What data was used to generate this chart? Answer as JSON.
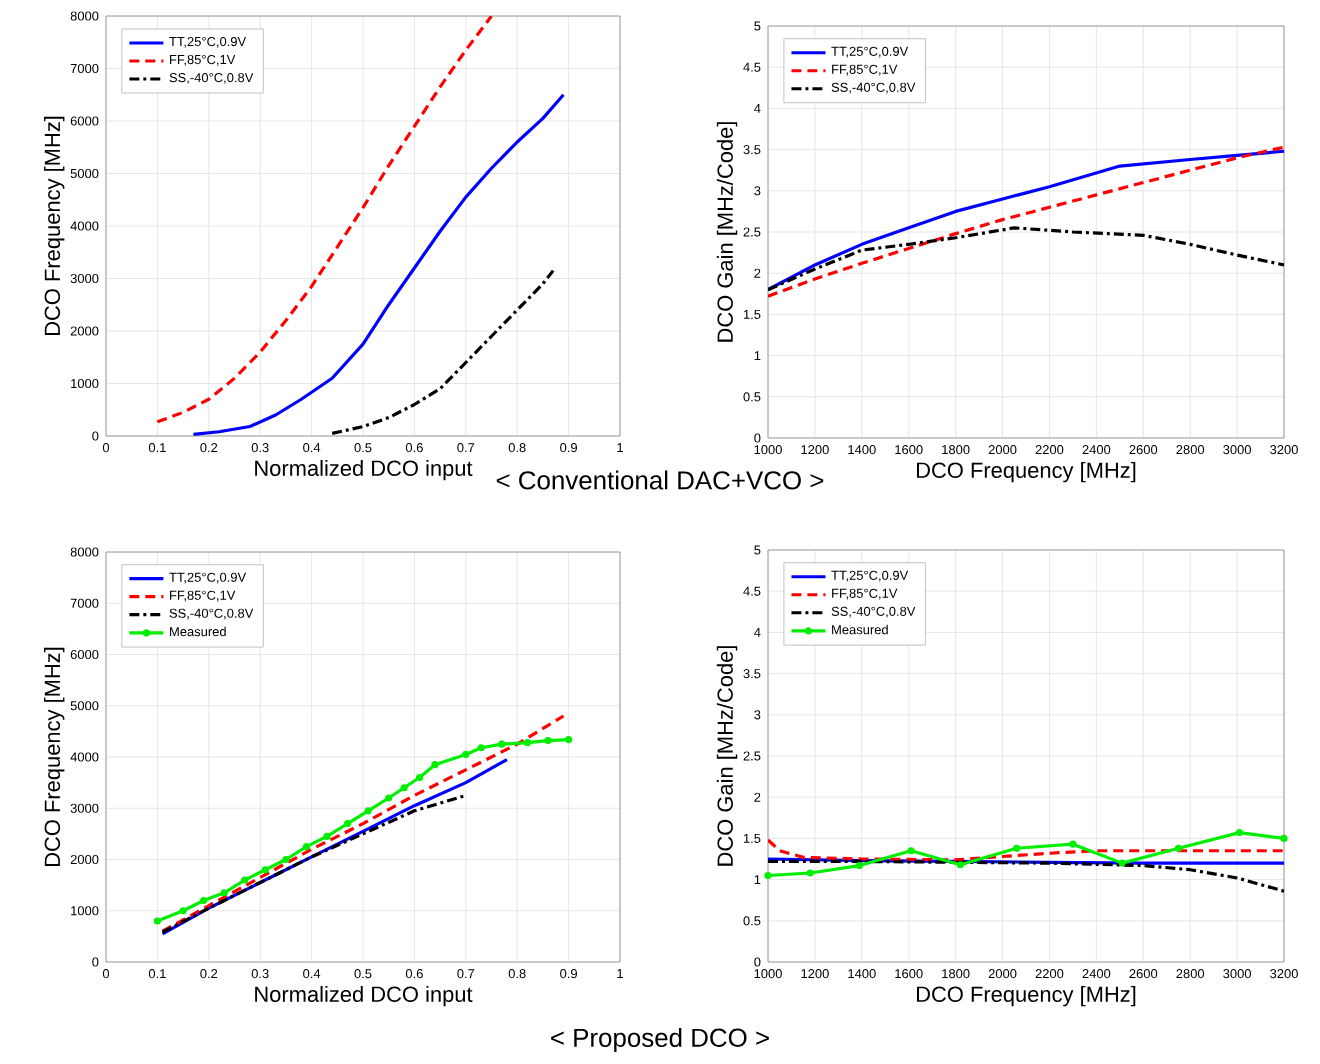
{
  "chart_data": [
    {
      "type": "line",
      "xlabel": "Normalized DCO input",
      "ylabel": "DCO Frequency [MHz]",
      "xlim": [
        0,
        1
      ],
      "ylim": [
        0,
        8000
      ],
      "xticks": [
        0,
        0.1,
        0.2,
        0.3,
        0.4,
        0.5,
        0.6,
        0.7,
        0.8,
        0.9,
        1
      ],
      "yticks": [
        0,
        1000,
        2000,
        3000,
        4000,
        5000,
        6000,
        7000,
        8000
      ],
      "grid": true,
      "legend": "top left",
      "annotations": [
        "< Conventional DAC+VCO >"
      ],
      "series": [
        {
          "name": "TT,25°C,0.9V",
          "color": "#0000ff",
          "line_style": "solid",
          "x": [
            0.17,
            0.22,
            0.28,
            0.33,
            0.38,
            0.44,
            0.5,
            0.55,
            0.6,
            0.65,
            0.7,
            0.75,
            0.8,
            0.85,
            0.89
          ],
          "values": [
            30,
            80,
            180,
            400,
            700,
            1100,
            1750,
            2500,
            3200,
            3900,
            4550,
            5100,
            5600,
            6050,
            6500
          ]
        },
        {
          "name": "FF,85°C,1V",
          "color": "#ff0000",
          "line_style": "dashed",
          "x": [
            0.1,
            0.15,
            0.2,
            0.25,
            0.3,
            0.35,
            0.4,
            0.45,
            0.5,
            0.55,
            0.6,
            0.65,
            0.7,
            0.75
          ],
          "values": [
            270,
            450,
            700,
            1100,
            1600,
            2200,
            2850,
            3600,
            4350,
            5150,
            5900,
            6650,
            7350,
            8000
          ]
        },
        {
          "name": "SS,-40°C,0.8V",
          "color": "#000000",
          "line_style": "dashdot",
          "x": [
            0.44,
            0.5,
            0.55,
            0.6,
            0.65,
            0.7,
            0.75,
            0.8,
            0.85,
            0.87
          ],
          "values": [
            50,
            180,
            350,
            600,
            900,
            1400,
            1900,
            2400,
            2900,
            3150
          ]
        }
      ]
    },
    {
      "type": "line",
      "xlabel": "DCO Frequency [MHz]",
      "ylabel": "DCO Gain [MHz/Code]",
      "xlim": [
        1000,
        3200
      ],
      "ylim": [
        0,
        5
      ],
      "xticks": [
        1000,
        1200,
        1400,
        1600,
        1800,
        2000,
        2200,
        2400,
        2600,
        2800,
        3000,
        3200
      ],
      "yticks": [
        0,
        0.5,
        1,
        1.5,
        2,
        2.5,
        3,
        3.5,
        4,
        4.5,
        5
      ],
      "grid": true,
      "legend": "top left",
      "series": [
        {
          "name": "TT,25°C,0.9V",
          "color": "#0000ff",
          "line_style": "solid",
          "x": [
            1000,
            1200,
            1400,
            1600,
            1800,
            2000,
            2200,
            2500,
            2800,
            3000,
            3200
          ],
          "values": [
            1.8,
            2.1,
            2.35,
            2.55,
            2.75,
            2.9,
            3.05,
            3.3,
            3.38,
            3.43,
            3.48
          ]
        },
        {
          "name": "FF,85°C,1V",
          "color": "#ff0000",
          "line_style": "dashed",
          "x": [
            1000,
            1200,
            1400,
            1600,
            1800,
            2000,
            2200,
            2400,
            2600,
            2800,
            3000,
            3200
          ],
          "values": [
            1.72,
            1.93,
            2.12,
            2.3,
            2.48,
            2.65,
            2.8,
            2.95,
            3.1,
            3.25,
            3.4,
            3.53
          ]
        },
        {
          "name": "SS,-40°C,0.8V",
          "color": "#000000",
          "line_style": "dashdot",
          "x": [
            1000,
            1200,
            1400,
            1600,
            1800,
            2050,
            2300,
            2600,
            2800,
            3000,
            3200
          ],
          "values": [
            1.8,
            2.05,
            2.28,
            2.35,
            2.43,
            2.55,
            2.5,
            2.46,
            2.35,
            2.22,
            2.1
          ]
        }
      ]
    },
    {
      "type": "line",
      "xlabel": "Normalized DCO input",
      "ylabel": "DCO Frequency [MHz]",
      "xlim": [
        0,
        1
      ],
      "ylim": [
        0,
        8000
      ],
      "xticks": [
        0,
        0.1,
        0.2,
        0.3,
        0.4,
        0.5,
        0.6,
        0.7,
        0.8,
        0.9,
        1
      ],
      "yticks": [
        0,
        1000,
        2000,
        3000,
        4000,
        5000,
        6000,
        7000,
        8000
      ],
      "grid": true,
      "legend": "top left",
      "annotations": [
        "< Proposed DCO >"
      ],
      "series": [
        {
          "name": "TT,25°C,0.9V",
          "color": "#0000ff",
          "line_style": "solid",
          "x": [
            0.11,
            0.2,
            0.3,
            0.4,
            0.5,
            0.6,
            0.7,
            0.78
          ],
          "values": [
            550,
            1050,
            1550,
            2050,
            2550,
            3050,
            3500,
            3950
          ]
        },
        {
          "name": "FF,85°C,1V",
          "color": "#ff0000",
          "line_style": "dashed",
          "x": [
            0.11,
            0.2,
            0.3,
            0.4,
            0.5,
            0.6,
            0.7,
            0.8,
            0.89
          ],
          "values": [
            600,
            1100,
            1650,
            2200,
            2700,
            3250,
            3750,
            4250,
            4800
          ]
        },
        {
          "name": "SS,-40°C,0.8V",
          "color": "#000000",
          "line_style": "dashdot",
          "x": [
            0.11,
            0.2,
            0.3,
            0.4,
            0.5,
            0.6,
            0.7
          ],
          "values": [
            580,
            1050,
            1550,
            2050,
            2500,
            2950,
            3250
          ]
        },
        {
          "name": "Measured",
          "color": "#00ee00",
          "line_style": "solid",
          "marker": "circle",
          "x": [
            0.1,
            0.15,
            0.19,
            0.23,
            0.27,
            0.31,
            0.35,
            0.39,
            0.43,
            0.47,
            0.51,
            0.55,
            0.58,
            0.61,
            0.64,
            0.7,
            0.73,
            0.77,
            0.82,
            0.86,
            0.9
          ],
          "values": [
            800,
            1000,
            1200,
            1350,
            1600,
            1800,
            2000,
            2250,
            2450,
            2700,
            2950,
            3200,
            3400,
            3600,
            3850,
            4050,
            4180,
            4250,
            4280,
            4320,
            4340
          ]
        }
      ]
    },
    {
      "type": "line",
      "xlabel": "DCO Frequency [MHz]",
      "ylabel": "DCO Gain [MHz/Code]",
      "xlim": [
        1000,
        3200
      ],
      "ylim": [
        0,
        5
      ],
      "xticks": [
        1000,
        1200,
        1400,
        1600,
        1800,
        2000,
        2200,
        2400,
        2600,
        2800,
        3000,
        3200
      ],
      "yticks": [
        0,
        0.5,
        1,
        1.5,
        2,
        2.5,
        3,
        3.5,
        4,
        4.5,
        5
      ],
      "grid": true,
      "legend": "top left",
      "series": [
        {
          "name": "TT,25°C,0.9V",
          "color": "#0000ff",
          "line_style": "solid",
          "x": [
            1000,
            1400,
            1800,
            2200,
            2600,
            3200
          ],
          "values": [
            1.25,
            1.23,
            1.22,
            1.21,
            1.2,
            1.2
          ]
        },
        {
          "name": "FF,85°C,1V",
          "color": "#ff0000",
          "line_style": "dashed",
          "x": [
            1000,
            1050,
            1150,
            1400,
            1800,
            2000,
            2200,
            2400,
            2800,
            3200
          ],
          "values": [
            1.48,
            1.35,
            1.27,
            1.25,
            1.24,
            1.28,
            1.32,
            1.35,
            1.35,
            1.35
          ]
        },
        {
          "name": "SS,-40°C,0.8V",
          "color": "#000000",
          "line_style": "dashdot",
          "x": [
            1000,
            1400,
            1800,
            2200,
            2600,
            2800,
            3000,
            3200
          ],
          "values": [
            1.22,
            1.22,
            1.21,
            1.2,
            1.17,
            1.12,
            1.02,
            0.86
          ]
        },
        {
          "name": "Measured",
          "color": "#00ee00",
          "line_style": "solid",
          "marker": "circle",
          "x": [
            1000,
            1180,
            1390,
            1610,
            1820,
            2060,
            2300,
            2510,
            2750,
            3010,
            3200
          ],
          "values": [
            1.05,
            1.08,
            1.17,
            1.35,
            1.18,
            1.38,
            1.43,
            1.2,
            1.38,
            1.57,
            1.5
          ]
        }
      ]
    }
  ]
}
